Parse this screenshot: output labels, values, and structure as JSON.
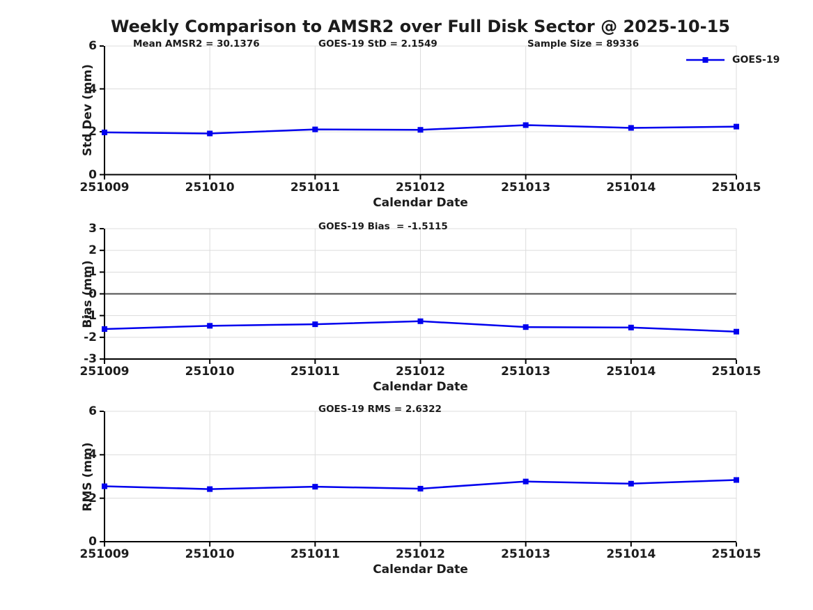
{
  "title": "Weekly Comparison to AMSR2 over Full Disk Sector @ 2025-10-15",
  "colors": {
    "series_blue": "#0000EE",
    "grid": "#DCDCDC",
    "axis": "#000000",
    "zero_line": "#4D4D4D",
    "text": "#1c1c1c",
    "background": "#FFFFFF"
  },
  "chart_data": [
    {
      "type": "line",
      "ylabel": "Std Dev (mm)",
      "xlabel": "Calendar Date",
      "categories": [
        "251009",
        "251010",
        "251011",
        "251012",
        "251013",
        "251014",
        "251015"
      ],
      "ylim": [
        0,
        6
      ],
      "yticks": [
        0,
        2,
        4,
        6
      ],
      "grid": true,
      "annotations": [
        "Mean AMSR2 = 30.1376",
        "GOES-19 StD = 2.1549",
        "Sample Size = 89336"
      ],
      "legend": {
        "label": "GOES-19",
        "position": "top-right-outside"
      },
      "series": [
        {
          "name": "GOES-19",
          "color": "#0000EE",
          "marker": "square",
          "values": [
            1.97,
            1.92,
            2.11,
            2.09,
            2.31,
            2.18,
            2.24
          ]
        }
      ]
    },
    {
      "type": "line",
      "ylabel": "Bias (mm)",
      "xlabel": "Calendar Date",
      "categories": [
        "251009",
        "251010",
        "251011",
        "251012",
        "251013",
        "251014",
        "251015"
      ],
      "ylim": [
        -3,
        3
      ],
      "yticks": [
        -3,
        -2,
        -1,
        0,
        1,
        2,
        3
      ],
      "grid": true,
      "zero_line": true,
      "annotations": [
        "GOES-19 Bias  = -1.5115"
      ],
      "series": [
        {
          "name": "GOES-19",
          "color": "#0000EE",
          "marker": "square",
          "values": [
            -1.62,
            -1.47,
            -1.4,
            -1.26,
            -1.53,
            -1.55,
            -1.74
          ]
        }
      ]
    },
    {
      "type": "line",
      "ylabel": "RMS (mm)",
      "xlabel": "Calendar Date",
      "categories": [
        "251009",
        "251010",
        "251011",
        "251012",
        "251013",
        "251014",
        "251015"
      ],
      "ylim": [
        0,
        6
      ],
      "yticks": [
        0,
        2,
        4,
        6
      ],
      "grid": true,
      "annotations": [
        "GOES-19 RMS = 2.6322"
      ],
      "series": [
        {
          "name": "GOES-19",
          "color": "#0000EE",
          "marker": "square",
          "values": [
            2.55,
            2.42,
            2.53,
            2.44,
            2.77,
            2.67,
            2.84
          ]
        }
      ]
    }
  ]
}
